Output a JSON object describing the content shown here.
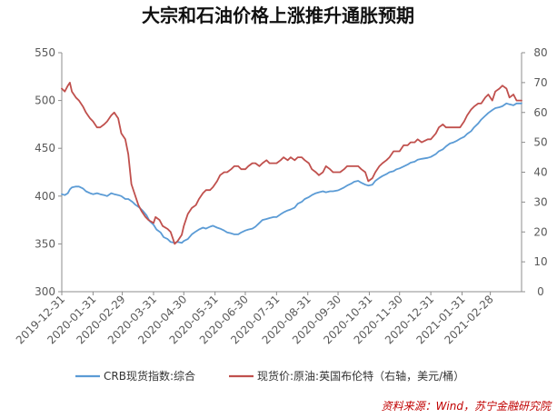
{
  "chart_data": {
    "type": "line",
    "title": "大宗和石油价格上涨推升通胀预期",
    "source": "资料来源：Wind，苏宁金融研究院",
    "x_start": "2019-12-31",
    "x_end": "2021-03-31",
    "x_ticks": [
      "2019-12-31",
      "2020-01-31",
      "2020-02-29",
      "2020-03-31",
      "2020-04-30",
      "2020-05-31",
      "2020-06-30",
      "2020-07-31",
      "2020-08-31",
      "2020-09-30",
      "2020-10-31",
      "2020-11-30",
      "2020-12-31",
      "2021-01-31",
      "2021-02-28"
    ],
    "y_left": {
      "min": 300,
      "max": 550,
      "ticks": [
        "300",
        "350",
        "400",
        "450",
        "500",
        "550"
      ]
    },
    "y_right": {
      "min": 0,
      "max": 80,
      "ticks": [
        "0",
        "10",
        "20",
        "30",
        "40",
        "50",
        "60",
        "70",
        "80"
      ]
    },
    "series": [
      {
        "name": "CRB现货指数:综合",
        "axis": "left",
        "color": "#5b9bd5",
        "points": [
          [
            "2019-12-31",
            402
          ],
          [
            "2020-01-03",
            401
          ],
          [
            "2020-01-06",
            403
          ],
          [
            "2020-01-08",
            407
          ],
          [
            "2020-01-10",
            409
          ],
          [
            "2020-01-14",
            410
          ],
          [
            "2020-01-17",
            410
          ],
          [
            "2020-01-21",
            408
          ],
          [
            "2020-01-24",
            405
          ],
          [
            "2020-01-28",
            403
          ],
          [
            "2020-01-31",
            402
          ],
          [
            "2020-02-04",
            403
          ],
          [
            "2020-02-07",
            402
          ],
          [
            "2020-02-11",
            401
          ],
          [
            "2020-02-14",
            400
          ],
          [
            "2020-02-18",
            403
          ],
          [
            "2020-02-21",
            402
          ],
          [
            "2020-02-25",
            401
          ],
          [
            "2020-02-28",
            400
          ],
          [
            "2020-03-03",
            397
          ],
          [
            "2020-03-06",
            397
          ],
          [
            "2020-03-10",
            394
          ],
          [
            "2020-03-13",
            391
          ],
          [
            "2020-03-17",
            388
          ],
          [
            "2020-03-20",
            385
          ],
          [
            "2020-03-24",
            380
          ],
          [
            "2020-03-27",
            374
          ],
          [
            "2020-03-31",
            370
          ],
          [
            "2020-04-03",
            365
          ],
          [
            "2020-04-07",
            362
          ],
          [
            "2020-04-10",
            357
          ],
          [
            "2020-04-14",
            355
          ],
          [
            "2020-04-17",
            352
          ],
          [
            "2020-04-21",
            351
          ],
          [
            "2020-04-24",
            352
          ],
          [
            "2020-04-28",
            351
          ],
          [
            "2020-04-30",
            353
          ],
          [
            "2020-05-04",
            355
          ],
          [
            "2020-05-08",
            360
          ],
          [
            "2020-05-12",
            363
          ],
          [
            "2020-05-15",
            365
          ],
          [
            "2020-05-19",
            367
          ],
          [
            "2020-05-22",
            366
          ],
          [
            "2020-05-26",
            368
          ],
          [
            "2020-05-29",
            369
          ],
          [
            "2020-06-02",
            367
          ],
          [
            "2020-06-05",
            366
          ],
          [
            "2020-06-09",
            364
          ],
          [
            "2020-06-12",
            362
          ],
          [
            "2020-06-16",
            361
          ],
          [
            "2020-06-19",
            360
          ],
          [
            "2020-06-23",
            360
          ],
          [
            "2020-06-26",
            362
          ],
          [
            "2020-06-30",
            364
          ],
          [
            "2020-07-03",
            365
          ],
          [
            "2020-07-07",
            366
          ],
          [
            "2020-07-10",
            368
          ],
          [
            "2020-07-14",
            372
          ],
          [
            "2020-07-17",
            375
          ],
          [
            "2020-07-21",
            376
          ],
          [
            "2020-07-24",
            377
          ],
          [
            "2020-07-28",
            378
          ],
          [
            "2020-07-31",
            378
          ],
          [
            "2020-08-04",
            381
          ],
          [
            "2020-08-07",
            383
          ],
          [
            "2020-08-11",
            385
          ],
          [
            "2020-08-14",
            386
          ],
          [
            "2020-08-18",
            388
          ],
          [
            "2020-08-21",
            392
          ],
          [
            "2020-08-25",
            394
          ],
          [
            "2020-08-28",
            397
          ],
          [
            "2020-09-01",
            399
          ],
          [
            "2020-09-04",
            401
          ],
          [
            "2020-09-08",
            403
          ],
          [
            "2020-09-11",
            404
          ],
          [
            "2020-09-15",
            405
          ],
          [
            "2020-09-18",
            404
          ],
          [
            "2020-09-22",
            405
          ],
          [
            "2020-09-25",
            405
          ],
          [
            "2020-09-30",
            406
          ],
          [
            "2020-10-02",
            407
          ],
          [
            "2020-10-06",
            409
          ],
          [
            "2020-10-09",
            411
          ],
          [
            "2020-10-13",
            413
          ],
          [
            "2020-10-16",
            415
          ],
          [
            "2020-10-20",
            416
          ],
          [
            "2020-10-23",
            414
          ],
          [
            "2020-10-27",
            412
          ],
          [
            "2020-10-30",
            411
          ],
          [
            "2020-11-03",
            412
          ],
          [
            "2020-11-06",
            416
          ],
          [
            "2020-11-10",
            419
          ],
          [
            "2020-11-13",
            421
          ],
          [
            "2020-11-17",
            423
          ],
          [
            "2020-11-20",
            425
          ],
          [
            "2020-11-24",
            426
          ],
          [
            "2020-11-27",
            428
          ],
          [
            "2020-11-30",
            429
          ],
          [
            "2020-12-04",
            431
          ],
          [
            "2020-12-08",
            433
          ],
          [
            "2020-12-11",
            435
          ],
          [
            "2020-12-15",
            436
          ],
          [
            "2020-12-18",
            438
          ],
          [
            "2020-12-22",
            439
          ],
          [
            "2020-12-28",
            440
          ],
          [
            "2020-12-31",
            441
          ],
          [
            "2021-01-05",
            444
          ],
          [
            "2021-01-08",
            447
          ],
          [
            "2021-01-12",
            449
          ],
          [
            "2021-01-15",
            452
          ],
          [
            "2021-01-19",
            455
          ],
          [
            "2021-01-22",
            456
          ],
          [
            "2021-01-26",
            458
          ],
          [
            "2021-01-29",
            460
          ],
          [
            "2021-02-02",
            462
          ],
          [
            "2021-02-05",
            465
          ],
          [
            "2021-02-09",
            468
          ],
          [
            "2021-02-12",
            472
          ],
          [
            "2021-02-16",
            476
          ],
          [
            "2021-02-19",
            480
          ],
          [
            "2021-02-23",
            484
          ],
          [
            "2021-02-26",
            487
          ],
          [
            "2021-03-02",
            490
          ],
          [
            "2021-03-05",
            492
          ],
          [
            "2021-03-09",
            493
          ],
          [
            "2021-03-12",
            494
          ],
          [
            "2021-03-16",
            497
          ],
          [
            "2021-03-19",
            496
          ],
          [
            "2021-03-23",
            495
          ],
          [
            "2021-03-26",
            497
          ],
          [
            "2021-03-31",
            497
          ]
        ]
      },
      {
        "name": "现货价:原油:英国布伦特（右轴，美元/桶）",
        "axis": "right",
        "color": "#c0504d",
        "points": [
          [
            "2019-12-31",
            68
          ],
          [
            "2020-01-03",
            67
          ],
          [
            "2020-01-06",
            69
          ],
          [
            "2020-01-08",
            70
          ],
          [
            "2020-01-10",
            67
          ],
          [
            "2020-01-14",
            65
          ],
          [
            "2020-01-17",
            64
          ],
          [
            "2020-01-21",
            62
          ],
          [
            "2020-01-24",
            60
          ],
          [
            "2020-01-28",
            58
          ],
          [
            "2020-01-31",
            57
          ],
          [
            "2020-02-04",
            55
          ],
          [
            "2020-02-07",
            55
          ],
          [
            "2020-02-11",
            56
          ],
          [
            "2020-02-14",
            57
          ],
          [
            "2020-02-18",
            59
          ],
          [
            "2020-02-21",
            60
          ],
          [
            "2020-02-25",
            58
          ],
          [
            "2020-02-28",
            53
          ],
          [
            "2020-03-03",
            51
          ],
          [
            "2020-03-06",
            46
          ],
          [
            "2020-03-09",
            36
          ],
          [
            "2020-03-12",
            33
          ],
          [
            "2020-03-16",
            29
          ],
          [
            "2020-03-19",
            27
          ],
          [
            "2020-03-23",
            25
          ],
          [
            "2020-03-26",
            24
          ],
          [
            "2020-03-31",
            23
          ],
          [
            "2020-04-02",
            25
          ],
          [
            "2020-04-06",
            24
          ],
          [
            "2020-04-09",
            22
          ],
          [
            "2020-04-14",
            21
          ],
          [
            "2020-04-17",
            20
          ],
          [
            "2020-04-21",
            16
          ],
          [
            "2020-04-24",
            17
          ],
          [
            "2020-04-28",
            19
          ],
          [
            "2020-04-30",
            22
          ],
          [
            "2020-05-04",
            26
          ],
          [
            "2020-05-08",
            28
          ],
          [
            "2020-05-12",
            29
          ],
          [
            "2020-05-15",
            31
          ],
          [
            "2020-05-19",
            33
          ],
          [
            "2020-05-22",
            34
          ],
          [
            "2020-05-26",
            34
          ],
          [
            "2020-05-29",
            35
          ],
          [
            "2020-06-02",
            37
          ],
          [
            "2020-06-05",
            39
          ],
          [
            "2020-06-09",
            40
          ],
          [
            "2020-06-12",
            40
          ],
          [
            "2020-06-16",
            41
          ],
          [
            "2020-06-19",
            42
          ],
          [
            "2020-06-23",
            42
          ],
          [
            "2020-06-26",
            41
          ],
          [
            "2020-06-30",
            41
          ],
          [
            "2020-07-03",
            42
          ],
          [
            "2020-07-07",
            43
          ],
          [
            "2020-07-10",
            43
          ],
          [
            "2020-07-14",
            42
          ],
          [
            "2020-07-17",
            43
          ],
          [
            "2020-07-21",
            44
          ],
          [
            "2020-07-24",
            43
          ],
          [
            "2020-07-28",
            43
          ],
          [
            "2020-07-31",
            43
          ],
          [
            "2020-08-04",
            44
          ],
          [
            "2020-08-07",
            45
          ],
          [
            "2020-08-11",
            44
          ],
          [
            "2020-08-14",
            45
          ],
          [
            "2020-08-18",
            44
          ],
          [
            "2020-08-21",
            45
          ],
          [
            "2020-08-25",
            45
          ],
          [
            "2020-08-28",
            44
          ],
          [
            "2020-09-01",
            43
          ],
          [
            "2020-09-04",
            41
          ],
          [
            "2020-09-08",
            40
          ],
          [
            "2020-09-11",
            39
          ],
          [
            "2020-09-15",
            40
          ],
          [
            "2020-09-18",
            42
          ],
          [
            "2020-09-22",
            41
          ],
          [
            "2020-09-25",
            40
          ],
          [
            "2020-09-30",
            40
          ],
          [
            "2020-10-02",
            40
          ],
          [
            "2020-10-06",
            41
          ],
          [
            "2020-10-09",
            42
          ],
          [
            "2020-10-13",
            42
          ],
          [
            "2020-10-16",
            42
          ],
          [
            "2020-10-20",
            42
          ],
          [
            "2020-10-23",
            41
          ],
          [
            "2020-10-27",
            40
          ],
          [
            "2020-10-30",
            37
          ],
          [
            "2020-11-03",
            38
          ],
          [
            "2020-11-06",
            40
          ],
          [
            "2020-11-10",
            42
          ],
          [
            "2020-11-13",
            43
          ],
          [
            "2020-11-17",
            44
          ],
          [
            "2020-11-20",
            45
          ],
          [
            "2020-11-24",
            47
          ],
          [
            "2020-11-27",
            47
          ],
          [
            "2020-11-30",
            47
          ],
          [
            "2020-12-04",
            49
          ],
          [
            "2020-12-08",
            49
          ],
          [
            "2020-12-11",
            50
          ],
          [
            "2020-12-15",
            50
          ],
          [
            "2020-12-18",
            51
          ],
          [
            "2020-12-22",
            50
          ],
          [
            "2020-12-28",
            51
          ],
          [
            "2020-12-31",
            51
          ],
          [
            "2021-01-05",
            53
          ],
          [
            "2021-01-08",
            55
          ],
          [
            "2021-01-12",
            56
          ],
          [
            "2021-01-15",
            55
          ],
          [
            "2021-01-19",
            55
          ],
          [
            "2021-01-22",
            55
          ],
          [
            "2021-01-26",
            55
          ],
          [
            "2021-01-29",
            55
          ],
          [
            "2021-02-02",
            57
          ],
          [
            "2021-02-05",
            59
          ],
          [
            "2021-02-09",
            61
          ],
          [
            "2021-02-12",
            62
          ],
          [
            "2021-02-16",
            63
          ],
          [
            "2021-02-19",
            63
          ],
          [
            "2021-02-23",
            65
          ],
          [
            "2021-02-26",
            66
          ],
          [
            "2021-03-02",
            64
          ],
          [
            "2021-03-05",
            67
          ],
          [
            "2021-03-09",
            68
          ],
          [
            "2021-03-12",
            69
          ],
          [
            "2021-03-16",
            68
          ],
          [
            "2021-03-19",
            65
          ],
          [
            "2021-03-23",
            66
          ],
          [
            "2021-03-26",
            64
          ],
          [
            "2021-03-31",
            64
          ]
        ]
      }
    ]
  }
}
